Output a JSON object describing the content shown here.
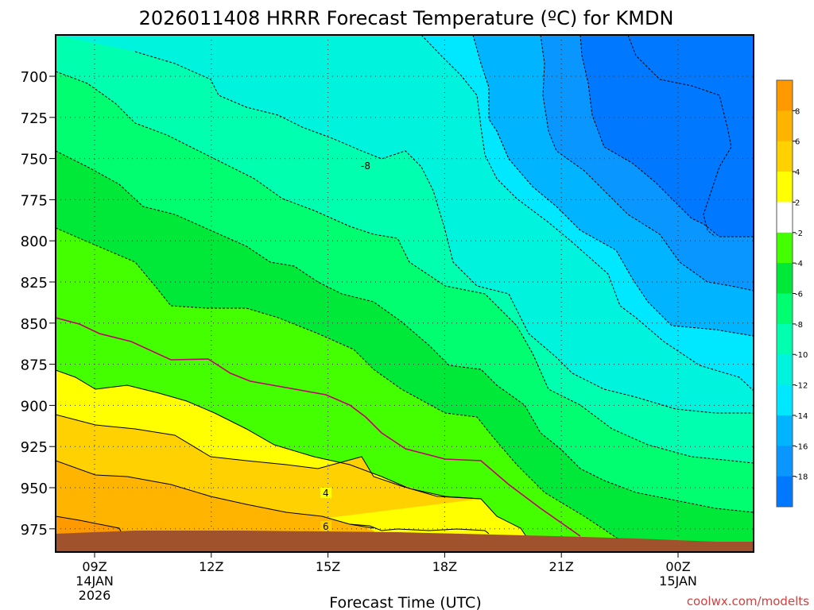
{
  "chart_data": {
    "type": "heatmap",
    "title": "2026011408 HRRR Forecast Temperature (ºC) for KMDN",
    "xlabel": "Forecast Time (UTC)",
    "ylabel": "",
    "credit": "coolwx.com/modelts",
    "y_axis": {
      "reversed": true,
      "ticks": [
        "700",
        "725",
        "750",
        "775",
        "800",
        "825",
        "850",
        "875",
        "900",
        "925",
        "950",
        "975"
      ]
    },
    "x_axis": {
      "ticks": [
        {
          "label": "09Z",
          "sub": [
            "14JAN",
            "2026"
          ]
        },
        {
          "label": "12Z",
          "sub": []
        },
        {
          "label": "15Z",
          "sub": []
        },
        {
          "label": "18Z",
          "sub": []
        },
        {
          "label": "21Z",
          "sub": []
        },
        {
          "label": "00Z",
          "sub": [
            "15JAN"
          ]
        }
      ]
    },
    "grid": true,
    "colorbar": {
      "placement": "right",
      "labels": [
        "8",
        "6",
        "4",
        "2",
        "-2",
        "-4",
        "-6",
        "-8",
        "-10",
        "-12",
        "-14",
        "-16",
        "-18"
      ],
      "colors": [
        "#ff9900",
        "#ffb400",
        "#ffd100",
        "#ffff00",
        "#ffffff",
        "#44ff00",
        "#00e838",
        "#00ff70",
        "#00ffae",
        "#00f3dc",
        "#00e8ff",
        "#00b4ff",
        "#0a96ff",
        "#0078ff"
      ]
    },
    "contour_labels": [
      "-8",
      "4",
      "6"
    ],
    "terrain_color": "#a0522d"
  }
}
